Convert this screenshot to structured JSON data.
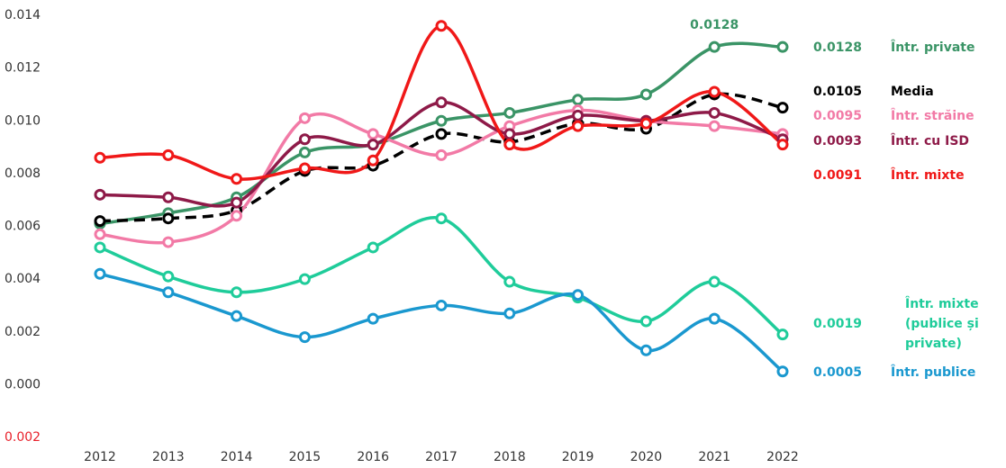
{
  "chart_data": {
    "type": "line",
    "categories": [
      "2012",
      "2013",
      "2014",
      "2015",
      "2016",
      "2017",
      "2018",
      "2019",
      "2020",
      "2021",
      "2022"
    ],
    "ylim": [
      -0.002,
      0.014
    ],
    "yticks": [
      {
        "value": -0.002,
        "label": "0.002"
      },
      {
        "value": 0,
        "label": "0.000"
      },
      {
        "value": 0.002,
        "label": "0.002"
      },
      {
        "value": 0.004,
        "label": "0.004"
      },
      {
        "value": 0.006,
        "label": "0.006"
      },
      {
        "value": 0.008,
        "label": "0.008"
      },
      {
        "value": 0.01,
        "label": "0.010"
      },
      {
        "value": 0.012,
        "label": "0.012"
      },
      {
        "value": 0.014,
        "label": "0.014"
      }
    ],
    "negative_tick_color": "#e8202a",
    "grid": false,
    "series": [
      {
        "name": "Într. private",
        "color": "#3a9466",
        "values": [
          0.0061,
          0.0065,
          0.0071,
          0.0088,
          0.0091,
          0.01,
          0.0103,
          0.0108,
          0.011,
          0.0128,
          0.0128
        ],
        "value_labels": [
          null,
          null,
          null,
          null,
          null,
          null,
          null,
          null,
          null,
          "0.0128",
          "0.0128"
        ]
      },
      {
        "name": "Media",
        "color": "#000000",
        "dashed": true,
        "values": [
          0.0062,
          0.0063,
          0.0066,
          0.0081,
          0.0083,
          0.0095,
          0.0092,
          0.0099,
          0.0097,
          0.011,
          0.0105
        ],
        "value_labels": [
          null,
          null,
          null,
          null,
          null,
          null,
          null,
          null,
          null,
          null,
          "0.0105"
        ]
      },
      {
        "name": "Într. străine",
        "color": "#f27aa6",
        "values": [
          0.0057,
          0.0054,
          0.0064,
          0.0101,
          0.0095,
          0.0087,
          0.0098,
          0.0104,
          0.01,
          0.0098,
          0.0095
        ],
        "value_labels": [
          null,
          null,
          null,
          null,
          null,
          null,
          null,
          null,
          null,
          null,
          "0.0095"
        ]
      },
      {
        "name": "Într. cu ISD",
        "color": "#8e1a48",
        "values": [
          0.0072,
          0.0071,
          0.0069,
          0.0093,
          0.0091,
          0.0107,
          0.0095,
          0.0102,
          0.01,
          0.0103,
          0.0093
        ],
        "value_labels": [
          null,
          null,
          null,
          null,
          null,
          null,
          null,
          null,
          null,
          null,
          "0.0093"
        ]
      },
      {
        "name": "Într. mixte",
        "color": "#f01818",
        "values": [
          0.0086,
          0.0087,
          0.0078,
          0.0082,
          0.0085,
          0.0136,
          0.0091,
          0.0098,
          0.0099,
          0.0111,
          0.0091
        ],
        "value_labels": [
          null,
          null,
          null,
          null,
          null,
          null,
          null,
          null,
          null,
          null,
          "0.0091"
        ]
      },
      {
        "name": "Într. mixte (publice și private)",
        "color": "#1fcc9a",
        "values": [
          0.0052,
          0.0041,
          0.0035,
          0.004,
          0.0052,
          0.0063,
          0.0039,
          0.0033,
          0.0024,
          0.0039,
          0.0019
        ],
        "value_labels": [
          null,
          null,
          null,
          null,
          null,
          null,
          null,
          null,
          null,
          null,
          "0.0019"
        ]
      },
      {
        "name": "Într. publice",
        "color": "#1a98cf",
        "values": [
          0.0042,
          0.0035,
          0.0026,
          0.0018,
          0.0025,
          0.003,
          0.0027,
          0.0034,
          0.0013,
          0.0025,
          0.0005
        ],
        "value_labels": [
          null,
          null,
          null,
          null,
          null,
          null,
          null,
          null,
          null,
          null,
          "0.0005"
        ]
      }
    ]
  }
}
